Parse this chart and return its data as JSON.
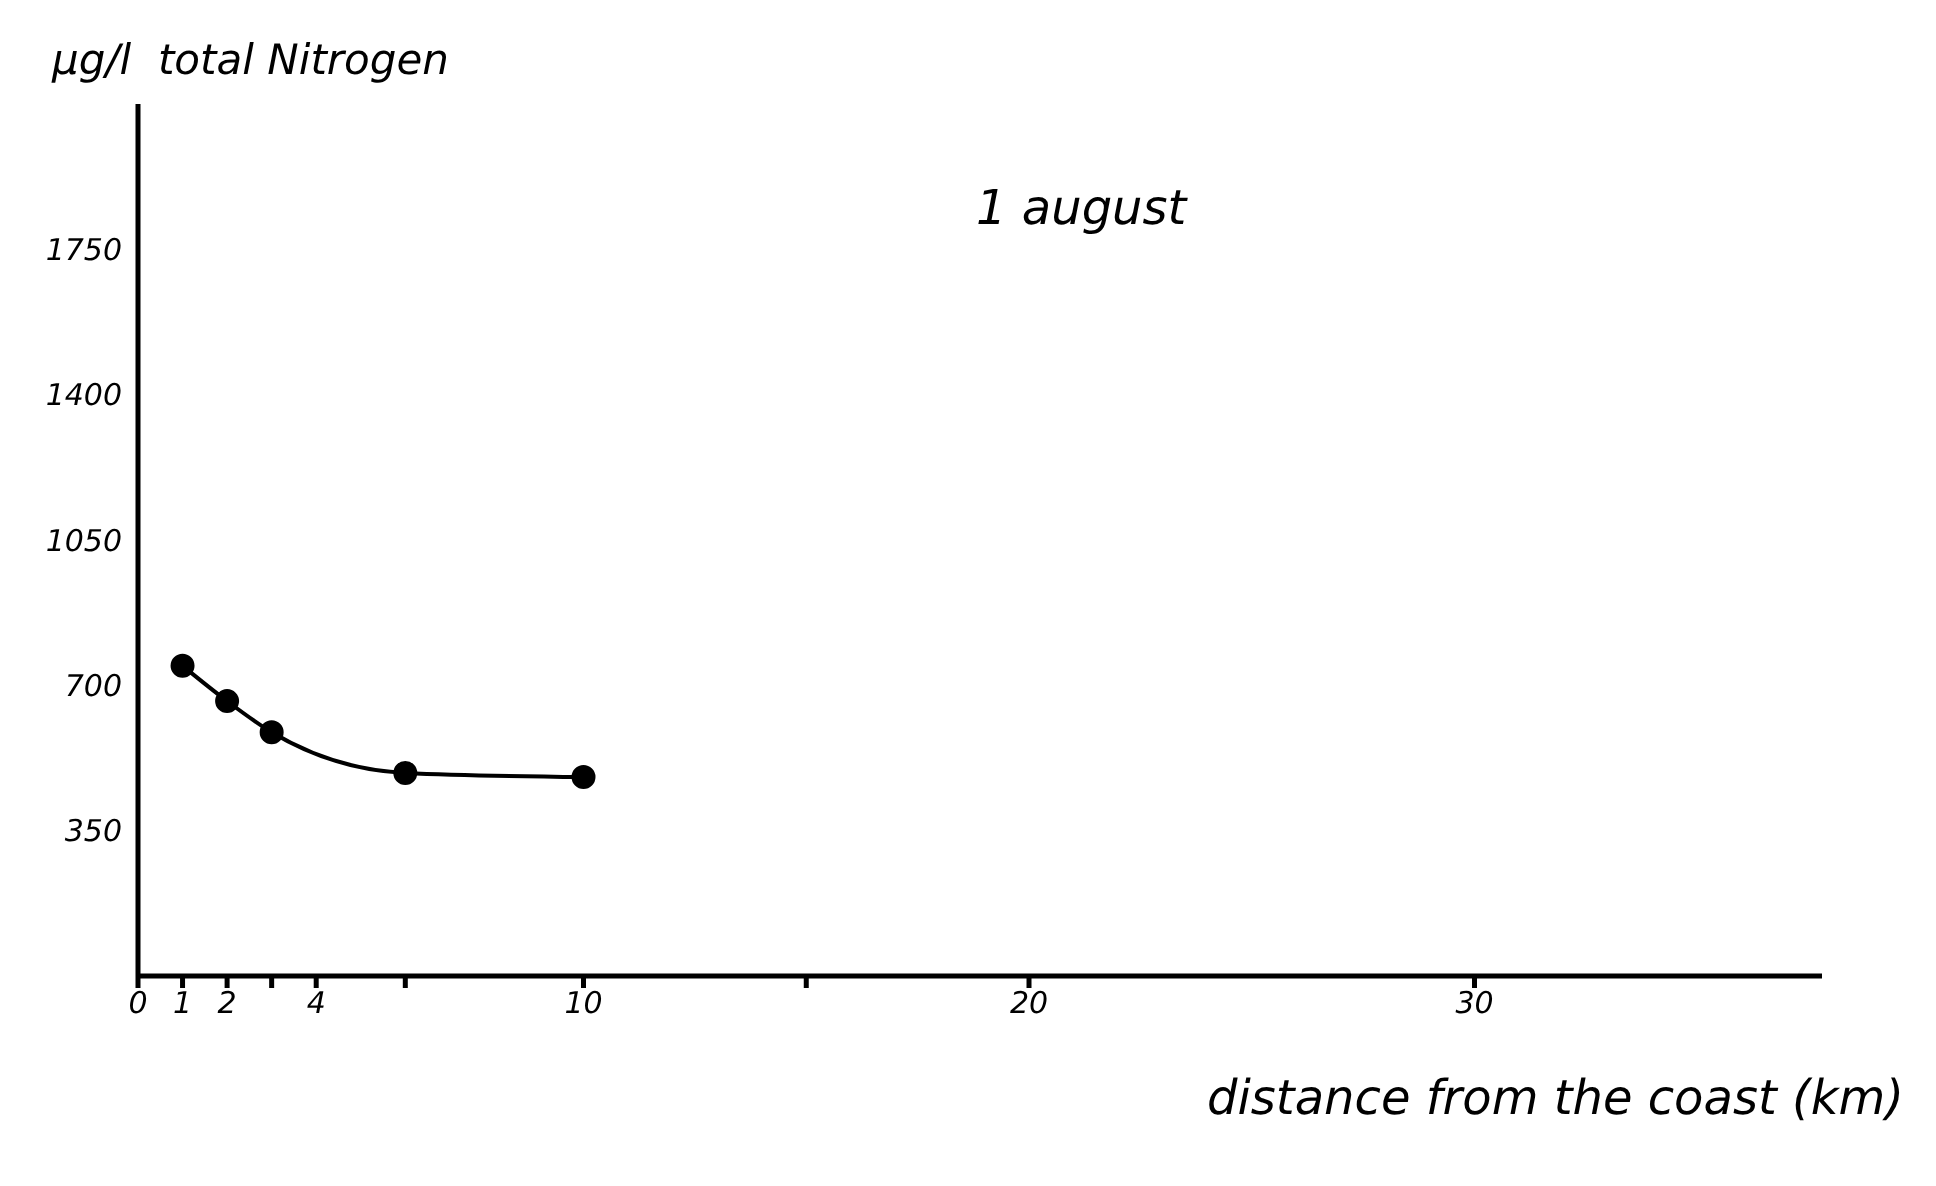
{
  "chart_data": {
    "type": "line",
    "title": "1 august",
    "ylabel": "µg/l  total Nitrogen",
    "xlabel": "distance from the coast (km)",
    "x": [
      1,
      2,
      3,
      6,
      10
    ],
    "series": [
      {
        "color": "#000000",
        "values": [
          747,
          662,
          587,
          489,
          479
        ]
      }
    ],
    "xlim": [
      0,
      37.8
    ],
    "xticks": [
      0,
      1,
      2,
      {
        "value": 3,
        "label": null
      },
      4,
      {
        "value": 6,
        "label": null
      },
      10,
      {
        "value": 15,
        "label": null
      },
      20,
      30
    ],
    "ylim": [
      0,
      2100
    ],
    "yticks": [
      350,
      700,
      1050,
      1400,
      1750
    ],
    "grid": false,
    "legend": false,
    "marker": "circle",
    "line_style": "solid"
  }
}
